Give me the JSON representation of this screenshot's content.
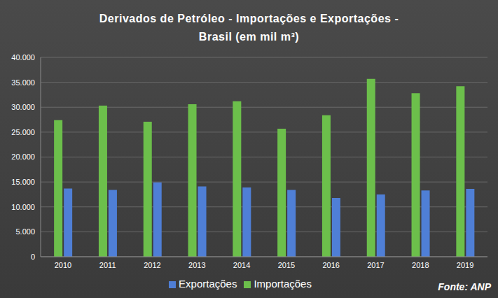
{
  "chart_data": {
    "type": "bar",
    "title": "Derivados de Petróleo - Importações e Exportações - Brasil (em mil m³)",
    "categories": [
      "2010",
      "2011",
      "2012",
      "2013",
      "2014",
      "2015",
      "2016",
      "2017",
      "2018",
      "2019"
    ],
    "series": [
      {
        "name": "Importações",
        "color": "#6cbf4b",
        "values": [
          27400,
          30300,
          27100,
          30600,
          31200,
          25700,
          28400,
          35700,
          32800,
          34200
        ]
      },
      {
        "name": "Exportações",
        "color": "#4f7fd6",
        "values": [
          13700,
          13400,
          14900,
          14100,
          13900,
          13400,
          11800,
          12500,
          13300,
          13600
        ]
      }
    ],
    "ylim": [
      0,
      40000
    ],
    "yticks": [
      0,
      {
        "value": 5000,
        "label": "5.000"
      },
      {
        "value": 10000,
        "label": "10.000"
      },
      {
        "value": 15000,
        "label": "15.000"
      },
      {
        "value": 20000,
        "label": "20.000"
      },
      {
        "value": 25000,
        "label": "25.000"
      },
      {
        "value": 30000,
        "label": "30.000"
      },
      {
        "value": 35000,
        "label": "35.000"
      },
      {
        "value": 40000,
        "label": "40.000"
      }
    ],
    "grid": true,
    "legend": "bottom",
    "annotations": [
      "Fonte: ANP"
    ]
  }
}
